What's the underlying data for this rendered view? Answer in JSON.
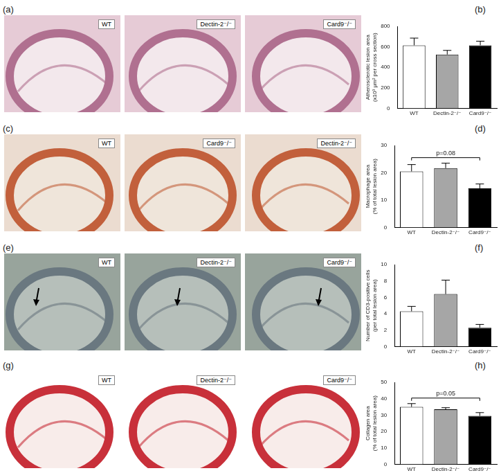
{
  "image_panels": [
    {
      "panel": "(a)",
      "labels": [
        "WT",
        "Dectin-2⁻/⁻",
        "Card9⁻/⁻"
      ]
    },
    {
      "panel": "(c)",
      "labels": [
        "WT",
        "Card9⁻/⁻",
        "Dectin-2⁻/⁻"
      ]
    },
    {
      "panel": "(e)",
      "labels": [
        "WT",
        "Dectin-2⁻/⁻",
        "Card9⁻/⁻"
      ]
    },
    {
      "panel": "(g)",
      "labels": [
        "WT",
        "Dectin-2⁻/⁻",
        "Card9⁻/⁻"
      ]
    }
  ],
  "chart_data": [
    {
      "panel": "(b)",
      "type": "bar",
      "y_label": [
        "Atherosclerotic lesion area",
        "(x10³ μm² per cross section)"
      ],
      "categories": [
        "WT",
        "Dectin-2⁻/⁻",
        "Card9⁻/⁻"
      ],
      "values": [
        615,
        525,
        615
      ],
      "errors": [
        70,
        40,
        40
      ],
      "colors": [
        "#ffffff",
        "#a6a6a6",
        "#000000"
      ],
      "ylim": [
        0,
        800
      ],
      "yticks": [
        0,
        200,
        400,
        600,
        800
      ],
      "grid": false
    },
    {
      "panel": "(d)",
      "type": "bar",
      "y_label": [
        "Macrophage area",
        "(% of total lesion area)"
      ],
      "categories": [
        "WT",
        "Dectin-2⁻/⁻",
        "Card9⁻/⁻"
      ],
      "values": [
        20.5,
        21.7,
        14.3
      ],
      "errors": [
        2.5,
        1.8,
        1.6
      ],
      "colors": [
        "#ffffff",
        "#a6a6a6",
        "#000000"
      ],
      "ylim": [
        0,
        30
      ],
      "yticks": [
        0,
        10,
        20,
        30
      ],
      "grid": false,
      "annotations": [
        {
          "text": "p=0.08",
          "from": "WT",
          "to": "Card9⁻/⁻"
        }
      ]
    },
    {
      "panel": "(f)",
      "type": "bar",
      "y_label": [
        "Number of CD3-positive cells",
        "(per total lesion area)"
      ],
      "categories": [
        "WT",
        "Dectin-2⁻/⁻",
        "Card9⁻/⁻"
      ],
      "values": [
        4.3,
        6.4,
        2.3
      ],
      "errors": [
        0.6,
        1.7,
        0.4
      ],
      "colors": [
        "#ffffff",
        "#a6a6a6",
        "#000000"
      ],
      "ylim": [
        0,
        10
      ],
      "yticks": [
        0,
        2,
        4,
        6,
        8,
        10
      ],
      "grid": false
    },
    {
      "panel": "(h)",
      "type": "bar",
      "y_label": [
        "Collagen area",
        "(% of total lesion area)"
      ],
      "categories": [
        "WT",
        "Dectin-2⁻/⁻",
        "Card9⁻/⁻"
      ],
      "values": [
        35,
        33.5,
        29.5
      ],
      "errors": [
        2,
        1,
        2
      ],
      "colors": [
        "#ffffff",
        "#a6a6a6",
        "#000000"
      ],
      "ylim": [
        0,
        50
      ],
      "yticks": [
        0,
        10,
        20,
        30,
        40,
        50
      ],
      "grid": false,
      "annotations": [
        {
          "text": "p=0.05",
          "from": "WT",
          "to": "Card9⁻/⁻"
        }
      ]
    }
  ]
}
